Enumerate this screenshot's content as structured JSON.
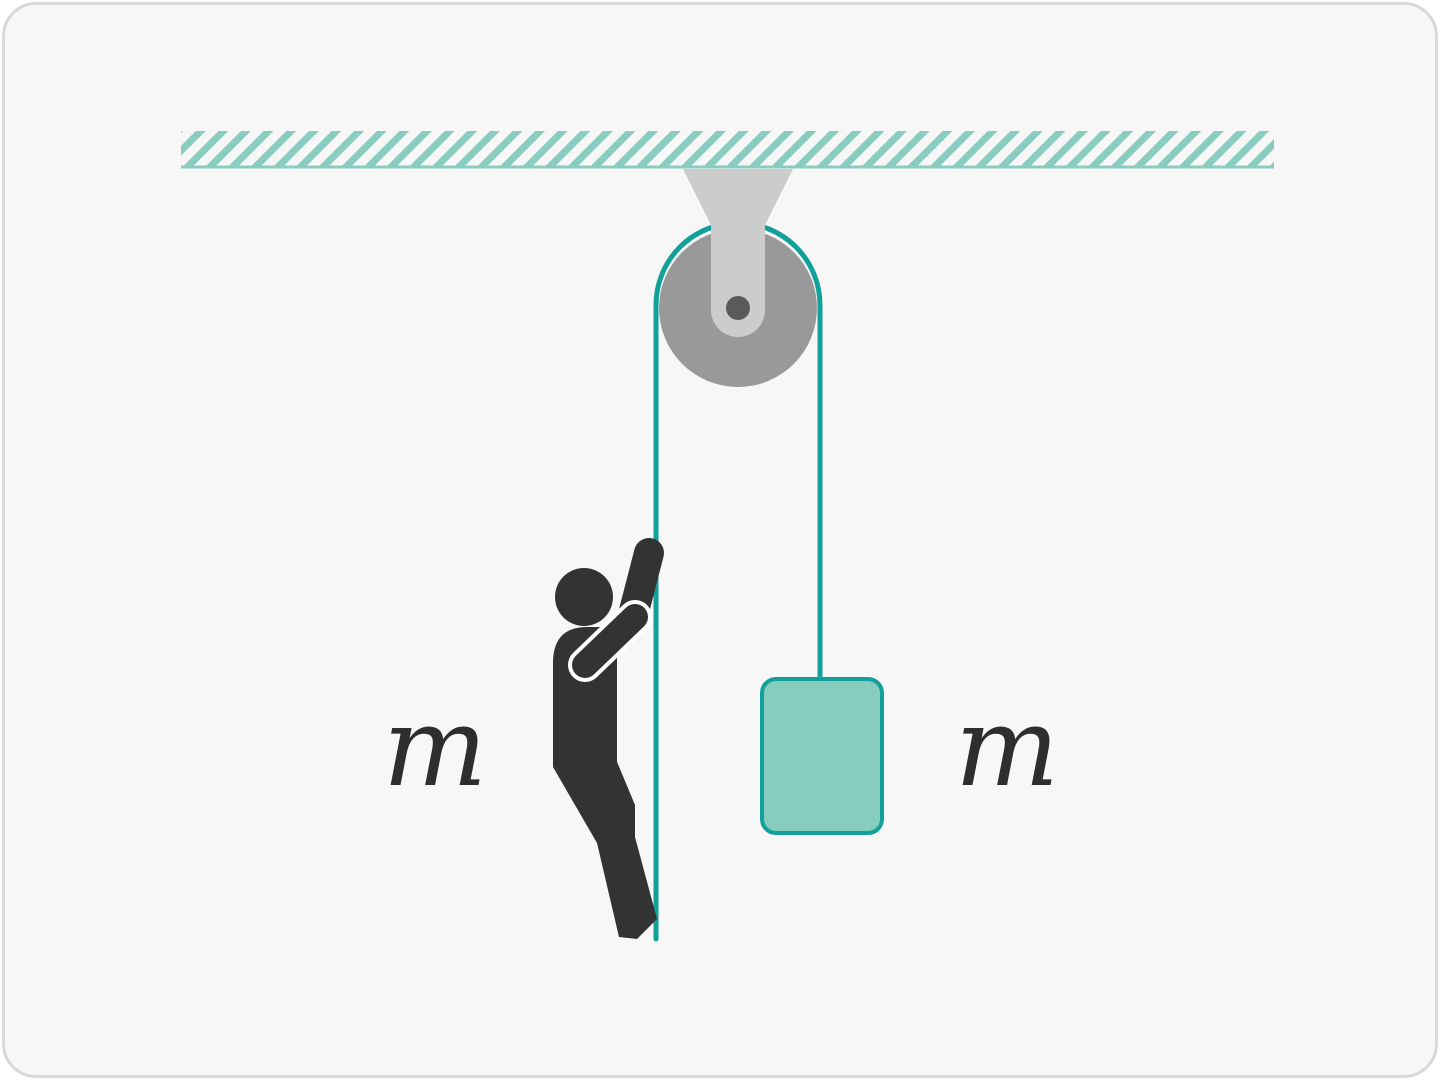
{
  "labels": {
    "climber_mass": "m",
    "block_mass": "m"
  },
  "colors": {
    "background": "#f7f7f7",
    "frame_border": "#d9d9d9",
    "ceiling_hatch": "#88cdbf",
    "rope": "#12a19a",
    "pulley_wheel": "#999999",
    "pulley_mount": "#cccccc",
    "axle": "#5a5a5a",
    "block_fill": "#87cdbe",
    "climber": "#333333"
  },
  "icons": {
    "climber": "stick-figure-climbing-rope",
    "pulley": "fixed-pulley"
  }
}
